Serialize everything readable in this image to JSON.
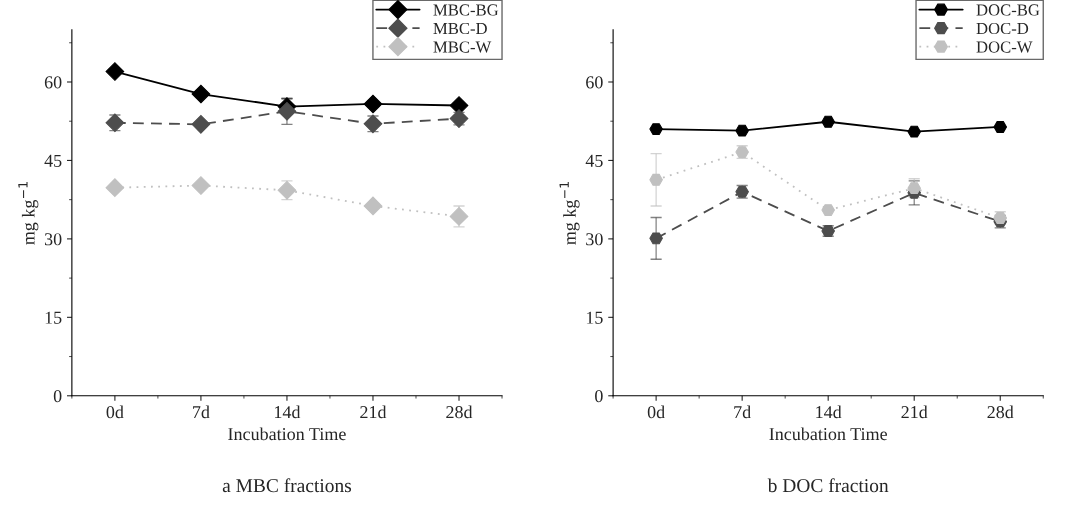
{
  "chart_data": [
    {
      "type": "line",
      "xlabel": "Incubation Time",
      "ylabel": "mg kg$^{−1}$",
      "categories": [
        "0d",
        "7d",
        "14d",
        "21d",
        "28d"
      ],
      "ylim": [
        0,
        70
      ],
      "yticks": [
        0,
        15,
        30,
        45,
        60
      ],
      "legend": "top right",
      "marker": "diamond",
      "grid": false,
      "annotations": [
        "a MBC fractions"
      ],
      "series": [
        {
          "name": "MBC-BG",
          "color": "#000000",
          "line_style": "solid",
          "values": [
            62,
            57.7,
            55.3,
            55.8,
            55.5
          ],
          "errors": [
            null,
            null,
            1.5,
            null,
            null
          ]
        },
        {
          "name": "MBC-D",
          "color": "#4d4d4d",
          "line_style": "dashed",
          "values": [
            52.2,
            51.9,
            54.4,
            52.0,
            53.0
          ],
          "errors": [
            1.5,
            null,
            2.5,
            1.5,
            1.2
          ]
        },
        {
          "name": "MBC-W",
          "color": "#c0c0c0",
          "line_style": "dotted",
          "values": [
            39.8,
            40.2,
            39.3,
            36.3,
            34.3
          ],
          "errors": [
            null,
            null,
            1.8,
            null,
            2.0
          ]
        }
      ]
    },
    {
      "type": "line",
      "xlabel": "Incubation Time",
      "ylabel": "mg kg$^{−1}$",
      "categories": [
        "0d",
        "7d",
        "14d",
        "21d",
        "28d"
      ],
      "ylim": [
        0,
        70
      ],
      "yticks": [
        0,
        15,
        30,
        45,
        60
      ],
      "legend": "top right",
      "marker": "circle",
      "grid": false,
      "annotations": [
        "b DOC fraction"
      ],
      "series": [
        {
          "name": "DOC-BG",
          "color": "#000000",
          "line_style": "solid",
          "values": [
            51,
            50.7,
            52.4,
            50.5,
            51.4
          ],
          "errors": [
            null,
            null,
            null,
            null,
            null
          ]
        },
        {
          "name": "DOC-D",
          "color": "#4d4d4d",
          "line_style": "dashed",
          "values": [
            30.1,
            39,
            31.5,
            38.8,
            33.3
          ],
          "errors": [
            4.0,
            1.2,
            1.0,
            2.3,
            1.2
          ]
        },
        {
          "name": "DOC-W",
          "color": "#c0c0c0",
          "line_style": "dotted",
          "values": [
            41.3,
            46.6,
            35.5,
            39.7,
            34.0
          ],
          "errors": [
            5.0,
            1.2,
            null,
            1.8,
            1.2
          ]
        }
      ]
    }
  ]
}
